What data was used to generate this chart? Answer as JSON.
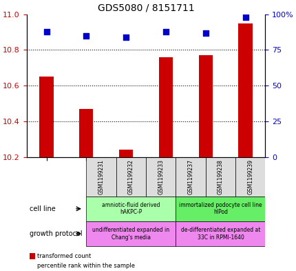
{
  "title": "GDS5080 / 8151711",
  "samples": [
    "GSM1199231",
    "GSM1199232",
    "GSM1199233",
    "GSM1199237",
    "GSM1199238",
    "GSM1199239"
  ],
  "transformed_counts": [
    10.65,
    10.47,
    10.24,
    10.76,
    10.77,
    10.95
  ],
  "percentile_ranks": [
    88,
    85,
    84,
    88,
    87,
    98
  ],
  "y_min": 10.2,
  "y_max": 11.0,
  "y_ticks": [
    10.2,
    10.4,
    10.6,
    10.8,
    11.0
  ],
  "right_y_ticks": [
    0,
    25,
    50,
    75,
    100
  ],
  "right_y_tick_labels": [
    "0",
    "25",
    "50",
    "75",
    "100%"
  ],
  "bar_color": "#cc0000",
  "dot_color": "#0000cc",
  "cell_line_groups": [
    {
      "label": "amniotic-fluid derived\nhAKPC-P",
      "start": 0,
      "end": 3,
      "color": "#aaffaa"
    },
    {
      "label": "immortalized podocyte cell line\nhIPod",
      "start": 3,
      "end": 6,
      "color": "#66ee66"
    }
  ],
  "growth_protocol_groups": [
    {
      "label": "undifferentiated expanded in\nChang's media",
      "start": 0,
      "end": 3,
      "color": "#ee88ee"
    },
    {
      "label": "de-differentiated expanded at\n33C in RPMI-1640",
      "start": 3,
      "end": 6,
      "color": "#ee88ee"
    }
  ],
  "cell_line_label": "cell line",
  "growth_protocol_label": "growth protocol",
  "legend_transformed": "transformed count",
  "legend_percentile": "percentile rank within the sample",
  "xlabel_color": "#cc0000",
  "ylabel_color": "#0000cc"
}
